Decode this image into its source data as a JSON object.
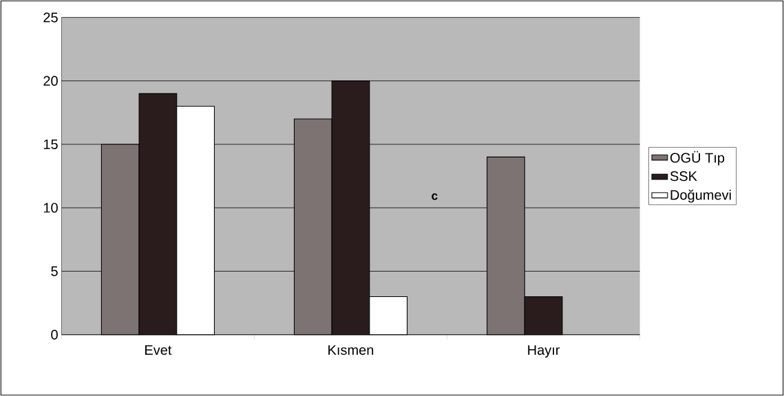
{
  "chart_data": {
    "type": "bar",
    "categories": [
      "Evet",
      "Kısmen",
      "Hayır"
    ],
    "series": [
      {
        "name": "OGÜ Tıp",
        "color": "#7d7373",
        "values": [
          15,
          17,
          14
        ]
      },
      {
        "name": "SSK",
        "color": "#2a1c1c",
        "values": [
          19,
          20,
          3
        ]
      },
      {
        "name": "Doğumevi",
        "color": "#ffffff",
        "values": [
          18,
          3,
          null
        ]
      }
    ],
    "ylim": [
      0,
      25
    ],
    "yticks": [
      0,
      5,
      10,
      15,
      20,
      25
    ],
    "grid": "y",
    "legend": "right",
    "annotations": [
      "c"
    ]
  }
}
